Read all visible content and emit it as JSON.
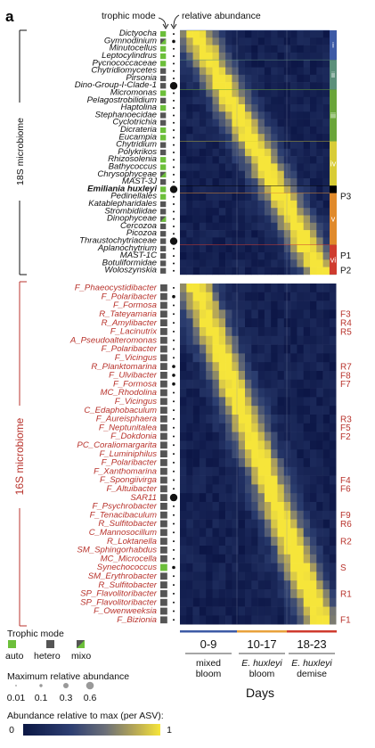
{
  "panel_letter": "a",
  "headers": {
    "trophic_mode": "trophic mode",
    "relative_abundance": "relative abundance"
  },
  "section_18s": {
    "title": "18S microbiome",
    "taxa": [
      "Dictyocha",
      "Gymnodinium",
      "Minutocellus",
      "Leptocylindrus",
      "Pycnococcaceae",
      "Chytridiomycetes",
      "Pirsonia",
      "Dino-Group-I-Clade-1",
      "Micromonas",
      "Pelagostrobilidium",
      "Haptolina",
      "Stephanoecidae",
      "Cyclotrichia",
      "Dicrateria",
      "Eucampia",
      "Chytridium",
      "Polykrikos",
      "Rhizosolenia",
      "Bathycoccus",
      "Chrysophyceae",
      "MAST-3J",
      "Emiliania huxleyi",
      "Pedinellales",
      "Katablepharidales",
      "Strombidiidae",
      "Dinophyceae",
      "Cercozoa",
      "Picozoa",
      "Thraustochytriaceae",
      "Aplanochytrium",
      "MAST-1C",
      "Botuliformidae",
      "Woloszynskia"
    ],
    "trophic": [
      "auto",
      "mixo",
      "auto",
      "auto",
      "auto",
      "hetero",
      "hetero",
      "hetero",
      "auto",
      "hetero",
      "auto",
      "hetero",
      "hetero",
      "auto",
      "auto",
      "hetero",
      "hetero",
      "auto",
      "auto",
      "mixo",
      "hetero",
      "auto",
      "auto",
      "hetero",
      "hetero",
      "mixo",
      "hetero",
      "hetero",
      "hetero",
      "hetero",
      "hetero",
      "hetero",
      "hetero"
    ],
    "abundance_class": [
      1,
      2,
      1,
      1,
      1,
      1,
      1,
      4,
      1,
      1,
      1,
      1,
      1,
      1,
      1,
      1,
      1,
      1,
      1,
      1,
      1,
      4,
      1,
      1,
      1,
      1,
      1,
      1,
      4,
      1,
      1,
      1,
      1
    ],
    "clusters": [
      {
        "label": "i",
        "color": "#3d5aa5",
        "span": [
          0,
          3
        ]
      },
      {
        "label": "ii",
        "color": "#5b8f7a",
        "span": [
          4,
          7
        ]
      },
      {
        "label": "iii",
        "color": "#6aa53a",
        "span": [
          8,
          14
        ]
      },
      {
        "label": "iv",
        "color": "#d8cc36",
        "span": [
          15,
          20
        ]
      },
      {
        "label": "",
        "color": "#000000",
        "span": [
          21,
          21
        ]
      },
      {
        "label": "v",
        "color": "#e08a2c",
        "span": [
          22,
          28
        ]
      },
      {
        "label": "vi",
        "color": "#cf3b2e",
        "span": [
          29,
          32
        ]
      }
    ],
    "side_labels": [
      {
        "text": "P3",
        "row": 22
      },
      {
        "text": "P1",
        "row": 30
      },
      {
        "text": "P2",
        "row": 32
      }
    ]
  },
  "section_16s": {
    "title": "16S microbiome",
    "taxa": [
      "F_Phaeocystidibacter",
      "F_Polaribacter",
      "F_Formosa",
      "R_Tateyamaria",
      "R_Amylibacter",
      "F_Lacinutrix",
      "A_Pseudoalteromonas",
      "F_Polaribacter",
      "F_Vicingus",
      "R_Planktomarina",
      "F_Ulvibacter",
      "F_Formosa",
      "MC_Rhodolina",
      "F_Vicingus",
      "C_Edaphobaculum",
      "F_Aureisphaera",
      "F_Neptunitalea",
      "F_Dokdonia",
      "PC_Coraliomargarita",
      "F_Luminiphilus",
      "F_Polaribacter",
      "F_Xanthomarina",
      "F_Spongiivirga",
      "F_Altuibacter",
      "SAR11",
      "F_Psychrobacter",
      "F_Tenacibaculum",
      "R_Sulfitobacter",
      "C_Mannosocillum",
      "R_Loktanella",
      "SM_Sphingorhabdus",
      "MC_Microcella",
      "Synechococcus",
      "SM_Erythrobacter",
      "R_Sulfitobacter",
      "SP_Flavolitoribacter",
      "SP_Flavolitoribacter",
      "F_Owenweeksia",
      "F_Bizionia"
    ],
    "trophic": [
      "hetero",
      "hetero",
      "hetero",
      "hetero",
      "hetero",
      "hetero",
      "hetero",
      "hetero",
      "hetero",
      "hetero",
      "hetero",
      "hetero",
      "hetero",
      "hetero",
      "hetero",
      "hetero",
      "hetero",
      "hetero",
      "hetero",
      "hetero",
      "hetero",
      "hetero",
      "hetero",
      "hetero",
      "hetero",
      "hetero",
      "hetero",
      "hetero",
      "hetero",
      "hetero",
      "hetero",
      "hetero",
      "auto",
      "hetero",
      "hetero",
      "hetero",
      "hetero",
      "hetero",
      "hetero"
    ],
    "abundance_class": [
      1,
      2,
      1,
      1,
      1,
      1,
      1,
      1,
      1,
      2,
      2,
      2,
      1,
      1,
      1,
      1,
      1,
      1,
      1,
      1,
      1,
      1,
      1,
      1,
      4,
      1,
      1,
      1,
      1,
      1,
      1,
      1,
      2,
      1,
      1,
      1,
      1,
      1,
      1
    ],
    "side_labels": [
      {
        "text": "F3",
        "row": 3
      },
      {
        "text": "R4",
        "row": 4
      },
      {
        "text": "R5",
        "row": 5
      },
      {
        "text": "R7",
        "row": 9
      },
      {
        "text": "F8",
        "row": 10
      },
      {
        "text": "F7",
        "row": 11
      },
      {
        "text": "R3",
        "row": 15
      },
      {
        "text": "F5",
        "row": 16
      },
      {
        "text": "F2",
        "row": 17
      },
      {
        "text": "F4",
        "row": 22
      },
      {
        "text": "F6",
        "row": 23
      },
      {
        "text": "F9",
        "row": 26
      },
      {
        "text": "R6",
        "row": 27
      },
      {
        "text": "R2",
        "row": 29
      },
      {
        "text": "S",
        "row": 32
      },
      {
        "text": "R1",
        "row": 35
      },
      {
        "text": "F1",
        "row": 38
      }
    ]
  },
  "timeline": {
    "groups": [
      {
        "range": "0-9",
        "line1": "mixed",
        "line2": "bloom",
        "color": "#3d5aa5"
      },
      {
        "range": "10-17",
        "line1": "E. huxleyi",
        "line2": "bloom",
        "color": "#e8a23c"
      },
      {
        "range": "18-23",
        "line1": "E. huxleyi",
        "line2": "demise",
        "color": "#cf3b2e"
      }
    ],
    "axis_label": "Days"
  },
  "legend": {
    "trophic_title": "Trophic mode",
    "trophic_items": [
      "auto",
      "hetero",
      "mixo"
    ],
    "max_abund_title": "Maximum relative abundance",
    "max_abund_values": [
      "0.01",
      "0.1",
      "0.3",
      "0.6"
    ],
    "colorbar_title": "Abundance relative to max (per ASV):",
    "colorbar_min": "0",
    "colorbar_max": "1"
  },
  "colors": {
    "auto": "#6cbf3a",
    "hetero": "#555555",
    "low": "#14204f",
    "mid": "#4a5f8a",
    "high": "#f3e03c"
  }
}
